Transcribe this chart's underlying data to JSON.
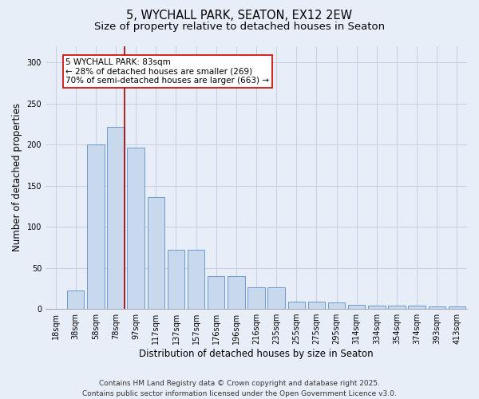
{
  "title_line1": "5, WYCHALL PARK, SEATON, EX12 2EW",
  "title_line2": "Size of property relative to detached houses in Seaton",
  "xlabel": "Distribution of detached houses by size in Seaton",
  "ylabel": "Number of detached properties",
  "bar_labels": [
    "18sqm",
    "38sqm",
    "58sqm",
    "78sqm",
    "97sqm",
    "117sqm",
    "137sqm",
    "157sqm",
    "176sqm",
    "196sqm",
    "216sqm",
    "235sqm",
    "255sqm",
    "275sqm",
    "295sqm",
    "314sqm",
    "334sqm",
    "354sqm",
    "374sqm",
    "393sqm",
    "413sqm"
  ],
  "bar_values": [
    0,
    22,
    200,
    221,
    196,
    136,
    72,
    72,
    40,
    40,
    26,
    26,
    9,
    9,
    8,
    5,
    4,
    4,
    4,
    3,
    3
  ],
  "bar_color": "#c8d9ee",
  "bar_edge_color": "#5b8dc8",
  "grid_color": "#c8d0e0",
  "background_color": "#e8eef8",
  "annotation_text": "5 WYCHALL PARK: 83sqm\n← 28% of detached houses are smaller (269)\n70% of semi-detached houses are larger (663) →",
  "annotation_box_facecolor": "white",
  "annotation_box_edgecolor": "#cc0000",
  "ylim": [
    0,
    320
  ],
  "yticks": [
    0,
    50,
    100,
    150,
    200,
    250,
    300
  ],
  "red_line_index": 3.5,
  "footer_line1": "Contains HM Land Registry data © Crown copyright and database right 2025.",
  "footer_line2": "Contains public sector information licensed under the Open Government Licence v3.0.",
  "title_fontsize": 10.5,
  "subtitle_fontsize": 9.5,
  "axis_label_fontsize": 8.5,
  "tick_fontsize": 7,
  "annotation_fontsize": 7.5,
  "footer_fontsize": 6.5
}
